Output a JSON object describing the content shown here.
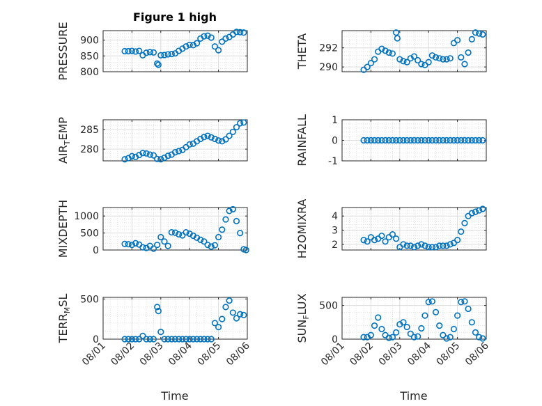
{
  "title": "Figure 1 high",
  "x_label": "Time",
  "colors": {
    "marker": "#0072BD",
    "grid": "#dcdcdc",
    "axis": "#262626"
  },
  "chart_data": [
    {
      "type": "scatter",
      "ylabel": "PRESSURE",
      "title": "Figure 1 high",
      "xlim": [
        "08/01",
        "08/06"
      ],
      "xticks": [
        "08/01",
        "08/02",
        "08/03",
        "08/04",
        "08/05",
        "08/06"
      ],
      "ylim": [
        800,
        930
      ],
      "yticks": [
        800,
        850,
        900
      ],
      "x": [
        "08/01 18:00",
        "08/01 21:00",
        "08/02 00:00",
        "08/02 03:00",
        "08/02 06:00",
        "08/02 09:00",
        "08/02 12:00",
        "08/02 15:00",
        "08/02 18:00",
        "08/02 21:00",
        "08/02 22:00",
        "08/03 00:00",
        "08/03 03:00",
        "08/03 06:00",
        "08/03 09:00",
        "08/03 12:00",
        "08/03 15:00",
        "08/03 18:00",
        "08/03 21:00",
        "08/04 00:00",
        "08/04 03:00",
        "08/04 06:00",
        "08/04 09:00",
        "08/04 12:00",
        "08/04 15:00",
        "08/04 18:00",
        "08/04 21:00",
        "08/05 00:00",
        "08/05 03:00",
        "08/05 06:00",
        "08/05 09:00",
        "08/05 12:00",
        "08/05 15:00",
        "08/05 18:00",
        "08/05 21:00"
      ],
      "y": [
        865,
        865,
        866,
        864,
        866,
        852,
        860,
        862,
        861,
        826,
        822,
        852,
        853,
        855,
        856,
        858,
        866,
        873,
        880,
        885,
        884,
        890,
        905,
        912,
        914,
        908,
        880,
        868,
        895,
        905,
        910,
        918,
        926,
        925,
        924
      ]
    },
    {
      "type": "scatter",
      "ylabel": "THETA",
      "xlim": [
        "08/01",
        "08/06"
      ],
      "xticks": [
        "08/01",
        "08/02",
        "08/03",
        "08/04",
        "08/05",
        "08/06"
      ],
      "ylim": [
        289.5,
        293.8
      ],
      "yticks": [
        290,
        292
      ],
      "x": [
        "08/01 18:00",
        "08/01 21:00",
        "08/02 00:00",
        "08/02 03:00",
        "08/02 06:00",
        "08/02 09:00",
        "08/02 12:00",
        "08/02 15:00",
        "08/02 18:00",
        "08/02 21:00",
        "08/02 22:00",
        "08/03 00:00",
        "08/03 03:00",
        "08/03 06:00",
        "08/03 09:00",
        "08/03 12:00",
        "08/03 15:00",
        "08/03 18:00",
        "08/03 21:00",
        "08/04 00:00",
        "08/04 03:00",
        "08/04 06:00",
        "08/04 09:00",
        "08/04 12:00",
        "08/04 15:00",
        "08/04 18:00",
        "08/04 21:00",
        "08/05 00:00",
        "08/05 03:00",
        "08/05 06:00",
        "08/05 09:00",
        "08/05 12:00",
        "08/05 15:00",
        "08/05 18:00",
        "08/05 21:00"
      ],
      "y": [
        289.7,
        290.0,
        290.4,
        290.8,
        291.6,
        291.9,
        291.7,
        291.5,
        291.4,
        293.6,
        293.0,
        290.8,
        290.6,
        290.5,
        290.9,
        291.1,
        290.7,
        290.3,
        290.2,
        290.5,
        291.2,
        291.0,
        290.9,
        290.8,
        290.8,
        290.9,
        292.5,
        292.8,
        291.0,
        290.3,
        291.5,
        292.9,
        293.6,
        293.5,
        293.4
      ]
    },
    {
      "type": "scatter",
      "ylabel": "AIR_TEMP",
      "xlim": [
        "08/01",
        "08/06"
      ],
      "xticks": [
        "08/01",
        "08/02",
        "08/03",
        "08/04",
        "08/05",
        "08/06"
      ],
      "ylim": [
        277,
        287.5
      ],
      "yticks": [
        280,
        285
      ],
      "x": [
        "08/01 18:00",
        "08/01 21:00",
        "08/02 00:00",
        "08/02 03:00",
        "08/02 06:00",
        "08/02 09:00",
        "08/02 12:00",
        "08/02 15:00",
        "08/02 18:00",
        "08/02 21:00",
        "08/03 00:00",
        "08/03 03:00",
        "08/03 06:00",
        "08/03 09:00",
        "08/03 12:00",
        "08/03 15:00",
        "08/03 18:00",
        "08/03 21:00",
        "08/04 00:00",
        "08/04 03:00",
        "08/04 06:00",
        "08/04 09:00",
        "08/04 12:00",
        "08/04 15:00",
        "08/04 18:00",
        "08/04 21:00",
        "08/05 00:00",
        "08/05 03:00",
        "08/05 06:00",
        "08/05 09:00",
        "08/05 12:00",
        "08/05 15:00",
        "08/05 18:00",
        "08/05 21:00"
      ],
      "y": [
        277.4,
        277.7,
        278.2,
        278.0,
        278.5,
        279.0,
        278.9,
        278.6,
        278.4,
        277.5,
        277.4,
        277.8,
        278.3,
        278.6,
        279.2,
        279.5,
        279.8,
        280.5,
        281.2,
        281.4,
        282.0,
        282.6,
        283.1,
        283.4,
        283.0,
        282.6,
        282.2,
        282.0,
        282.5,
        283.4,
        284.4,
        285.6,
        286.6,
        286.8
      ]
    },
    {
      "type": "scatter",
      "ylabel": "RAINFALL",
      "xlim": [
        "08/01",
        "08/06"
      ],
      "xticks": [
        "08/01",
        "08/02",
        "08/03",
        "08/04",
        "08/05",
        "08/06"
      ],
      "ylim": [
        -1,
        1
      ],
      "yticks": [
        -1,
        0,
        1
      ],
      "x": [
        "08/01 18:00",
        "08/01 21:00",
        "08/02 00:00",
        "08/02 03:00",
        "08/02 06:00",
        "08/02 09:00",
        "08/02 12:00",
        "08/02 15:00",
        "08/02 18:00",
        "08/02 21:00",
        "08/03 00:00",
        "08/03 03:00",
        "08/03 06:00",
        "08/03 09:00",
        "08/03 12:00",
        "08/03 15:00",
        "08/03 18:00",
        "08/03 21:00",
        "08/04 00:00",
        "08/04 03:00",
        "08/04 06:00",
        "08/04 09:00",
        "08/04 12:00",
        "08/04 15:00",
        "08/04 18:00",
        "08/04 21:00",
        "08/05 00:00",
        "08/05 03:00",
        "08/05 06:00",
        "08/05 09:00",
        "08/05 12:00",
        "08/05 15:00",
        "08/05 18:00",
        "08/05 21:00"
      ],
      "y": [
        0,
        0,
        0,
        0,
        0,
        0,
        0,
        0,
        0,
        0,
        0,
        0,
        0,
        0,
        0,
        0,
        0,
        0,
        0,
        0,
        0,
        0,
        0,
        0,
        0,
        0,
        0,
        0,
        0,
        0,
        0,
        0,
        0,
        0
      ]
    },
    {
      "type": "scatter",
      "ylabel": "MIXDEPTH",
      "xlim": [
        "08/01",
        "08/06"
      ],
      "xticks": [
        "08/01",
        "08/02",
        "08/03",
        "08/04",
        "08/05",
        "08/06"
      ],
      "ylim": [
        0,
        1250
      ],
      "yticks": [
        0,
        500,
        1000
      ],
      "x": [
        "08/01 18:00",
        "08/01 21:00",
        "08/02 00:00",
        "08/02 03:00",
        "08/02 06:00",
        "08/02 09:00",
        "08/02 12:00",
        "08/02 15:00",
        "08/02 18:00",
        "08/02 21:00",
        "08/03 00:00",
        "08/03 03:00",
        "08/03 06:00",
        "08/03 09:00",
        "08/03 12:00",
        "08/03 15:00",
        "08/03 18:00",
        "08/03 21:00",
        "08/04 00:00",
        "08/04 03:00",
        "08/04 06:00",
        "08/04 09:00",
        "08/04 12:00",
        "08/04 15:00",
        "08/04 18:00",
        "08/04 21:00",
        "08/05 00:00",
        "08/05 03:00",
        "08/05 06:00",
        "08/05 09:00",
        "08/05 12:00",
        "08/05 15:00",
        "08/05 18:00",
        "08/05 21:00",
        "08/05 23:00"
      ],
      "y": [
        180,
        170,
        150,
        200,
        160,
        80,
        60,
        120,
        40,
        150,
        380,
        250,
        120,
        520,
        510,
        460,
        430,
        520,
        480,
        420,
        360,
        300,
        250,
        150,
        100,
        140,
        380,
        600,
        900,
        1150,
        1200,
        850,
        500,
        20,
        0
      ]
    },
    {
      "type": "scatter",
      "ylabel": "H2OMIXRA",
      "xlim": [
        "08/01",
        "08/06"
      ],
      "xticks": [
        "08/01",
        "08/02",
        "08/03",
        "08/04",
        "08/05",
        "08/06"
      ],
      "ylim": [
        1.6,
        4.6
      ],
      "yticks": [
        2,
        3,
        4
      ],
      "x": [
        "08/01 18:00",
        "08/01 21:00",
        "08/02 00:00",
        "08/02 03:00",
        "08/02 06:00",
        "08/02 09:00",
        "08/02 12:00",
        "08/02 15:00",
        "08/02 18:00",
        "08/02 21:00",
        "08/03 00:00",
        "08/03 03:00",
        "08/03 06:00",
        "08/03 09:00",
        "08/03 12:00",
        "08/03 15:00",
        "08/03 18:00",
        "08/03 21:00",
        "08/04 00:00",
        "08/04 03:00",
        "08/04 06:00",
        "08/04 09:00",
        "08/04 12:00",
        "08/04 15:00",
        "08/04 18:00",
        "08/04 21:00",
        "08/05 00:00",
        "08/05 03:00",
        "08/05 06:00",
        "08/05 09:00",
        "08/05 12:00",
        "08/05 15:00",
        "08/05 18:00",
        "08/05 21:00"
      ],
      "y": [
        2.3,
        2.2,
        2.5,
        2.3,
        2.4,
        2.6,
        2.2,
        2.5,
        2.7,
        2.4,
        1.8,
        2.0,
        1.9,
        1.9,
        1.8,
        1.9,
        2.0,
        1.9,
        1.8,
        1.8,
        1.8,
        1.9,
        1.9,
        1.9,
        2.0,
        2.1,
        2.3,
        2.9,
        3.5,
        4.0,
        4.2,
        4.3,
        4.4,
        4.5
      ]
    },
    {
      "type": "scatter",
      "ylabel": "TERR_MSL",
      "xlim": [
        "08/01",
        "08/06"
      ],
      "xticks": [
        "08/01",
        "08/02",
        "08/03",
        "08/04",
        "08/05",
        "08/06"
      ],
      "ylim": [
        0,
        520
      ],
      "yticks": [
        0,
        500
      ],
      "x": [
        "08/01 18:00",
        "08/01 21:00",
        "08/02 00:00",
        "08/02 03:00",
        "08/02 06:00",
        "08/02 09:00",
        "08/02 12:00",
        "08/02 15:00",
        "08/02 18:00",
        "08/02 21:00",
        "08/02 22:00",
        "08/03 00:00",
        "08/03 03:00",
        "08/03 06:00",
        "08/03 09:00",
        "08/03 12:00",
        "08/03 15:00",
        "08/03 18:00",
        "08/03 21:00",
        "08/04 00:00",
        "08/04 03:00",
        "08/04 06:00",
        "08/04 09:00",
        "08/04 12:00",
        "08/04 15:00",
        "08/04 18:00",
        "08/04 21:00",
        "08/05 00:00",
        "08/05 03:00",
        "08/05 06:00",
        "08/05 09:00",
        "08/05 12:00",
        "08/05 15:00",
        "08/05 18:00",
        "08/05 21:00"
      ],
      "y": [
        0,
        0,
        0,
        0,
        0,
        40,
        0,
        0,
        0,
        400,
        350,
        90,
        0,
        0,
        0,
        0,
        0,
        0,
        0,
        0,
        0,
        0,
        0,
        0,
        0,
        0,
        200,
        150,
        250,
        400,
        480,
        330,
        260,
        310,
        300
      ]
    },
    {
      "type": "scatter",
      "ylabel": "SUN_FLUX",
      "xlim": [
        "08/01",
        "08/06"
      ],
      "xticks": [
        "08/01",
        "08/02",
        "08/03",
        "08/04",
        "08/05",
        "08/06"
      ],
      "ylim": [
        0,
        620
      ],
      "yticks": [
        0,
        500
      ],
      "x": [
        "08/01 18:00",
        "08/01 21:00",
        "08/02 00:00",
        "08/02 03:00",
        "08/02 06:00",
        "08/02 09:00",
        "08/02 12:00",
        "08/02 15:00",
        "08/02 18:00",
        "08/02 21:00",
        "08/03 00:00",
        "08/03 03:00",
        "08/03 06:00",
        "08/03 09:00",
        "08/03 12:00",
        "08/03 15:00",
        "08/03 18:00",
        "08/03 21:00",
        "08/04 00:00",
        "08/04 03:00",
        "08/04 06:00",
        "08/04 09:00",
        "08/04 12:00",
        "08/04 15:00",
        "08/04 18:00",
        "08/04 21:00",
        "08/05 00:00",
        "08/05 03:00",
        "08/05 06:00",
        "08/05 09:00",
        "08/05 12:00",
        "08/05 15:00",
        "08/05 18:00",
        "08/05 21:00"
      ],
      "y": [
        30,
        30,
        60,
        200,
        320,
        150,
        60,
        20,
        30,
        100,
        220,
        250,
        180,
        80,
        30,
        40,
        160,
        350,
        550,
        560,
        400,
        200,
        60,
        10,
        30,
        150,
        350,
        550,
        560,
        450,
        250,
        100,
        30,
        10
      ]
    }
  ]
}
